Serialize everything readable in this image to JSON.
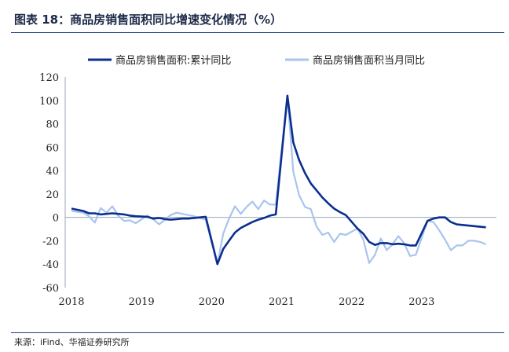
{
  "header": {
    "title": "图表 18：商品房销售面积同比增速变化情况（%）",
    "source": "来源：iFind、华福证券研究所"
  },
  "chart_data": {
    "type": "line",
    "title": "图表 18：商品房销售面积同比增速变化情况（%）",
    "xlabel": "",
    "ylabel": "",
    "ylim": [
      -60,
      120
    ],
    "yticks": [
      -60,
      -40,
      -20,
      0,
      20,
      40,
      60,
      80,
      100,
      120
    ],
    "xlim": [
      "2018-01",
      "2024-01"
    ],
    "xticks": [
      "2018",
      "2019",
      "2020",
      "2021",
      "2022",
      "2023"
    ],
    "grid": false,
    "legend": "top",
    "colors": {
      "cumulative": "#0a2f8f",
      "monthly": "#a9c4ee"
    },
    "series": [
      {
        "name": "商品房销售面积:累计同比",
        "x": [
          "2018-01",
          "2018-03",
          "2018-04",
          "2018-05",
          "2018-06",
          "2018-07",
          "2018-08",
          "2018-09",
          "2018-10",
          "2018-11",
          "2018-12",
          "2019-02",
          "2019-03",
          "2019-04",
          "2019-05",
          "2019-06",
          "2019-07",
          "2019-08",
          "2019-09",
          "2019-10",
          "2019-11",
          "2019-12",
          "2020-02",
          "2020-03",
          "2020-04",
          "2020-05",
          "2020-06",
          "2020-07",
          "2020-08",
          "2020-09",
          "2020-10",
          "2020-11",
          "2020-12",
          "2021-02",
          "2021-03",
          "2021-04",
          "2021-05",
          "2021-06",
          "2021-07",
          "2021-08",
          "2021-09",
          "2021-10",
          "2021-11",
          "2021-12",
          "2022-02",
          "2022-03",
          "2022-04",
          "2022-05",
          "2022-06",
          "2022-07",
          "2022-08",
          "2022-09",
          "2022-10",
          "2022-11",
          "2022-12",
          "2023-02",
          "2023-03",
          "2023-04",
          "2023-05",
          "2023-06",
          "2023-07",
          "2023-08",
          "2023-09",
          "2023-10",
          "2023-11",
          "2023-12"
        ],
        "values": [
          7.5,
          5.5,
          3.5,
          3.5,
          2.5,
          3.0,
          3.5,
          3.0,
          2.5,
          1.5,
          1.0,
          0.5,
          -1.0,
          -0.5,
          -1.5,
          -2.0,
          -1.5,
          -1.0,
          -1.0,
          -0.5,
          0.0,
          0.5,
          -40,
          -27,
          -20,
          -13,
          -9,
          -6.5,
          -4,
          -2,
          -0.5,
          1.5,
          2.5,
          104,
          64,
          49,
          38,
          29,
          23,
          17,
          12,
          7.5,
          4.5,
          2,
          -9.5,
          -14,
          -21,
          -23.5,
          -22,
          -22,
          -23,
          -22.5,
          -23,
          -24,
          -24,
          -3,
          -1,
          0,
          0,
          -4,
          -6,
          -6.5,
          -7,
          -7.5,
          -8,
          -8.5
        ]
      },
      {
        "name": "商品房销售面积当月同比",
        "x": [
          "2018-01",
          "2018-03",
          "2018-04",
          "2018-05",
          "2018-06",
          "2018-07",
          "2018-08",
          "2018-09",
          "2018-10",
          "2018-11",
          "2018-12",
          "2019-02",
          "2019-03",
          "2019-04",
          "2019-05",
          "2019-06",
          "2019-07",
          "2019-08",
          "2019-09",
          "2019-10",
          "2019-11",
          "2019-12",
          "2020-02",
          "2020-03",
          "2020-04",
          "2020-05",
          "2020-06",
          "2020-07",
          "2020-08",
          "2020-09",
          "2020-10",
          "2020-11",
          "2020-12",
          "2021-02",
          "2021-03",
          "2021-04",
          "2021-05",
          "2021-06",
          "2021-07",
          "2021-08",
          "2021-09",
          "2021-10",
          "2021-11",
          "2021-12",
          "2022-02",
          "2022-03",
          "2022-04",
          "2022-05",
          "2022-06",
          "2022-07",
          "2022-08",
          "2022-09",
          "2022-10",
          "2022-11",
          "2022-12",
          "2023-02",
          "2023-03",
          "2023-04",
          "2023-05",
          "2023-06",
          "2023-07",
          "2023-08",
          "2023-09",
          "2023-10",
          "2023-11",
          "2023-12"
        ],
        "values": [
          5.5,
          4,
          1,
          -4.5,
          8,
          4,
          9.5,
          1.5,
          -3,
          -2.5,
          -5,
          1.5,
          -1.5,
          -6,
          -2,
          2,
          4,
          3,
          2,
          1,
          -0.5,
          -2,
          -40,
          -14,
          -1,
          9.5,
          3,
          9,
          13.5,
          7,
          14.5,
          11,
          11,
          104,
          39,
          19,
          9,
          7,
          -8,
          -15,
          -13,
          -21,
          -14,
          -15,
          -9.5,
          -19,
          -39,
          -32,
          -18,
          -28,
          -23,
          -16,
          -22,
          -33,
          -32,
          -3,
          -4,
          -11,
          -19,
          -28,
          -24,
          -24,
          -20,
          -20,
          -21,
          -23
        ]
      }
    ]
  }
}
